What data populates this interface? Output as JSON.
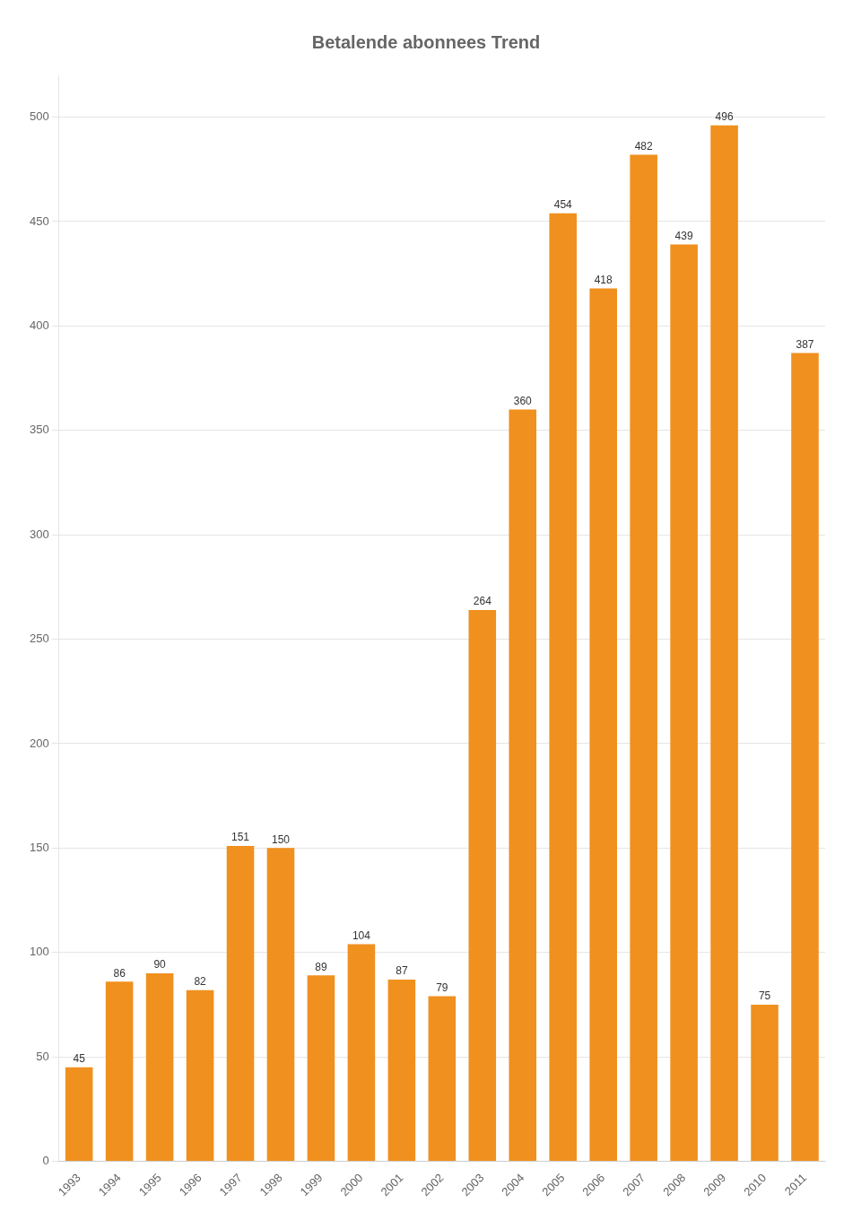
{
  "chart_data": {
    "type": "bar",
    "title": "Betalende abonnees Trend",
    "categories": [
      "1993",
      "1994",
      "1995",
      "1996",
      "1997",
      "1998",
      "1999",
      "2000",
      "2001",
      "2002",
      "2003",
      "2004",
      "2005",
      "2006",
      "2007",
      "2008",
      "2009",
      "2010",
      "2011"
    ],
    "values": [
      45,
      86,
      90,
      82,
      151,
      150,
      89,
      104,
      87,
      79,
      264,
      360,
      454,
      418,
      482,
      439,
      496,
      75,
      387
    ],
    "color": "#F0901E",
    "ylim": [
      0,
      520
    ],
    "yticks": [
      0,
      50,
      100,
      150,
      200,
      250,
      300,
      350,
      400,
      450,
      500
    ],
    "grid": true,
    "data_labels": true
  }
}
